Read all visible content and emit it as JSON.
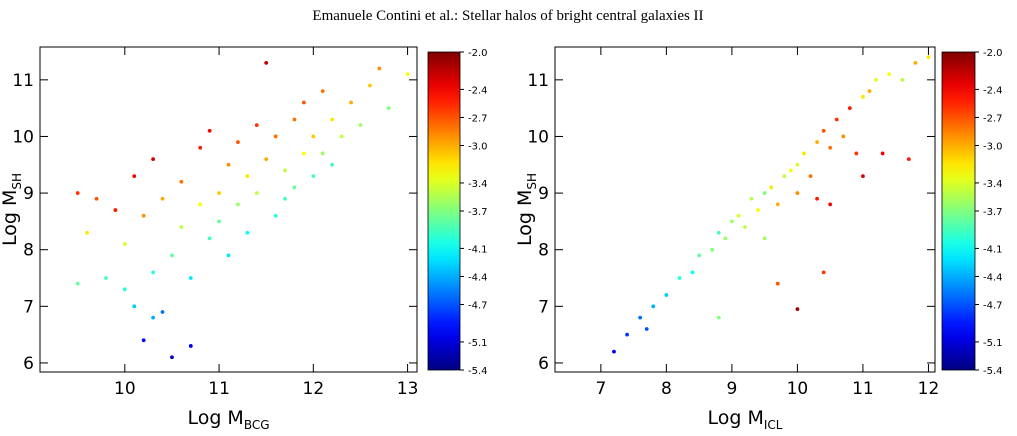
{
  "header": "Emanuele Contini   et al.: Stellar halos of bright central galaxies II",
  "chart_data": [
    {
      "type": "scatter",
      "xlabel": "Log M",
      "xlabel_sub": "BCG",
      "ylabel": "Log M",
      "ylabel_sub": "SH",
      "xlim": [
        9.1,
        13.1
      ],
      "ylim": [
        5.84,
        11.58
      ],
      "xticks": [
        10,
        11,
        12,
        13
      ],
      "yticks": [
        6,
        7,
        8,
        9,
        10,
        11
      ],
      "colorbar": {
        "colormap": "jet",
        "clim": [
          -5.4,
          -2.0
        ],
        "ticks": [
          {
            "value": -2.0,
            "label": "-2.0"
          },
          {
            "value": -2.4,
            "label": "-2.4"
          },
          {
            "value": -2.7,
            "label": "-2.7"
          },
          {
            "value": -3.0,
            "label": "-3.0"
          },
          {
            "value": -3.4,
            "label": "-3.4"
          },
          {
            "value": -3.7,
            "label": "-3.7"
          },
          {
            "value": -4.1,
            "label": "-4.1"
          },
          {
            "value": -4.4,
            "label": "-4.4"
          },
          {
            "value": -4.7,
            "label": "-4.7"
          },
          {
            "value": -5.1,
            "label": "-5.1"
          },
          {
            "value": -5.4,
            "label": "-5.4"
          }
        ]
      },
      "x": [
        9.5,
        9.6,
        9.7,
        9.8,
        9.9,
        10.0,
        10.1,
        10.1,
        10.2,
        10.2,
        10.3,
        10.3,
        10.4,
        10.4,
        10.5,
        10.5,
        10.6,
        10.6,
        10.7,
        10.7,
        10.8,
        10.8,
        10.9,
        10.9,
        11.0,
        11.0,
        11.1,
        11.1,
        11.2,
        11.2,
        11.3,
        11.3,
        11.4,
        11.4,
        11.5,
        11.5,
        11.6,
        11.6,
        11.7,
        11.7,
        11.8,
        11.8,
        11.9,
        11.9,
        12.0,
        12.0,
        12.1,
        12.1,
        12.2,
        12.2,
        12.3,
        12.4,
        12.5,
        12.6,
        12.8,
        13.0,
        12.7,
        10.0,
        9.5,
        10.3
      ],
      "y": [
        9.0,
        8.3,
        8.9,
        7.5,
        8.7,
        8.1,
        7.0,
        9.3,
        6.4,
        8.6,
        7.6,
        9.6,
        6.9,
        8.9,
        7.9,
        6.1,
        8.4,
        9.2,
        6.3,
        7.5,
        9.8,
        8.8,
        8.2,
        10.1,
        9.0,
        8.5,
        9.5,
        7.9,
        9.9,
        8.8,
        9.3,
        8.3,
        10.2,
        9.0,
        11.3,
        9.6,
        8.6,
        10.0,
        9.4,
        8.9,
        10.3,
        9.1,
        9.7,
        10.6,
        9.3,
        10.0,
        9.7,
        10.8,
        9.5,
        10.3,
        10.0,
        10.6,
        10.2,
        10.9,
        10.5,
        11.1,
        11.2,
        7.3,
        7.4,
        6.8
      ],
      "c": [
        -2.6,
        -3.2,
        -2.7,
        -3.9,
        -2.5,
        -3.4,
        -4.3,
        -2.4,
        -5.0,
        -2.9,
        -4.0,
        -2.3,
        -4.6,
        -3.0,
        -3.8,
        -5.2,
        -3.5,
        -2.8,
        -5.0,
        -4.2,
        -2.5,
        -3.3,
        -3.9,
        -2.4,
        -3.1,
        -3.8,
        -2.9,
        -4.2,
        -2.7,
        -3.6,
        -3.2,
        -4.1,
        -2.6,
        -3.5,
        -2.2,
        -3.0,
        -4.0,
        -2.8,
        -3.5,
        -3.9,
        -2.8,
        -3.8,
        -3.3,
        -2.7,
        -3.9,
        -3.1,
        -3.6,
        -2.8,
        -3.9,
        -3.2,
        -3.5,
        -3.0,
        -3.6,
        -3.1,
        -3.7,
        -3.3,
        -2.9,
        -4.0,
        -3.8,
        -4.4
      ]
    },
    {
      "type": "scatter",
      "xlabel": "Log M",
      "xlabel_sub": "ICL",
      "ylabel": "Log M",
      "ylabel_sub": "SH",
      "xlim": [
        6.3,
        12.1
      ],
      "ylim": [
        5.84,
        11.58
      ],
      "xticks": [
        7,
        8,
        9,
        10,
        11,
        12
      ],
      "yticks": [
        6,
        7,
        8,
        9,
        10,
        11
      ],
      "colorbar": {
        "colormap": "jet",
        "clim": [
          -5.4,
          -2.0
        ],
        "ticks": [
          {
            "value": -2.0,
            "label": "-2.0"
          },
          {
            "value": -2.4,
            "label": "-2.4"
          },
          {
            "value": -2.7,
            "label": "-2.7"
          },
          {
            "value": -3.0,
            "label": "-3.0"
          },
          {
            "value": -3.4,
            "label": "-3.4"
          },
          {
            "value": -3.7,
            "label": "-3.7"
          },
          {
            "value": -4.1,
            "label": "-4.1"
          },
          {
            "value": -4.4,
            "label": "-4.4"
          },
          {
            "value": -4.7,
            "label": "-4.7"
          },
          {
            "value": -5.1,
            "label": "-5.1"
          },
          {
            "value": -5.4,
            "label": "-5.4"
          }
        ]
      },
      "x": [
        7.2,
        7.4,
        7.6,
        7.8,
        8.0,
        8.2,
        8.4,
        8.5,
        8.7,
        8.8,
        8.9,
        9.0,
        9.1,
        9.2,
        9.3,
        9.4,
        9.5,
        9.6,
        9.7,
        9.8,
        9.9,
        10.0,
        10.0,
        10.1,
        10.2,
        10.3,
        10.4,
        10.5,
        10.6,
        10.7,
        10.8,
        10.9,
        11.0,
        11.1,
        11.2,
        11.4,
        11.6,
        11.8,
        12.0,
        9.7,
        10.0,
        10.3,
        10.5,
        11.0,
        11.3,
        9.5,
        8.8,
        10.4,
        11.7,
        7.7
      ],
      "y": [
        6.2,
        6.5,
        6.8,
        7.0,
        7.2,
        7.5,
        7.6,
        7.9,
        8.0,
        8.3,
        8.2,
        8.5,
        8.6,
        8.4,
        8.9,
        8.7,
        9.0,
        9.1,
        8.8,
        9.3,
        9.4,
        9.5,
        9.0,
        9.7,
        9.3,
        9.9,
        10.1,
        9.8,
        10.3,
        10.0,
        10.5,
        9.7,
        10.7,
        10.8,
        11.0,
        11.1,
        11.0,
        11.3,
        11.4,
        7.4,
        6.95,
        8.9,
        8.8,
        9.3,
        9.7,
        8.2,
        6.8,
        7.6,
        9.6,
        6.6
      ],
      "c": [
        -5.0,
        -4.8,
        -4.6,
        -4.4,
        -4.3,
        -4.0,
        -4.1,
        -3.8,
        -3.7,
        -3.9,
        -3.6,
        -3.6,
        -3.4,
        -3.5,
        -3.5,
        -3.3,
        -3.7,
        -3.2,
        -3.0,
        -3.5,
        -3.3,
        -3.4,
        -2.9,
        -3.2,
        -2.8,
        -3.0,
        -2.7,
        -2.8,
        -2.6,
        -2.9,
        -2.5,
        -2.6,
        -3.2,
        -3.0,
        -3.4,
        -3.3,
        -3.5,
        -3.0,
        -3.2,
        -2.7,
        -2.1,
        -2.5,
        -2.4,
        -2.3,
        -2.4,
        -3.6,
        -3.7,
        -2.6,
        -2.5,
        -4.7
      ]
    }
  ]
}
